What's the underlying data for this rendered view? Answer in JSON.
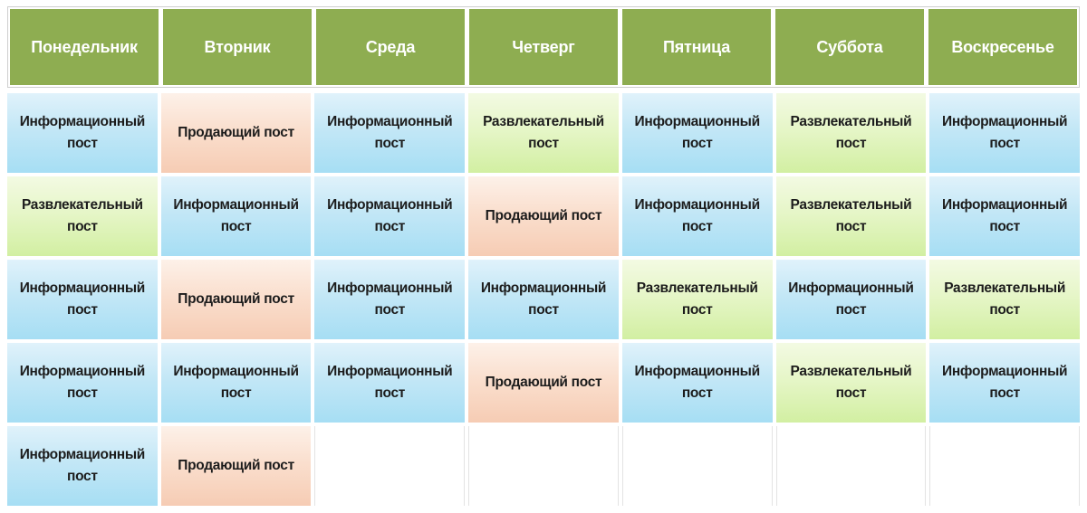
{
  "calendar": {
    "days": [
      "Понедельник",
      "Вторник",
      "Среда",
      "Четверг",
      "Пятница",
      "Суббота",
      "Воскресенье"
    ],
    "post_type_labels": {
      "info": "Информационный пост",
      "sell": "Продающий пост",
      "fun": "Развлекательный пост"
    },
    "rows": [
      [
        {
          "type": "info",
          "label": "Информационный пост"
        },
        {
          "type": "sell",
          "label": "Продающий пост"
        },
        {
          "type": "info",
          "label": "Информационный пост"
        },
        {
          "type": "fun",
          "label": "Развлекательный пост"
        },
        {
          "type": "info",
          "label": "Информационный пост"
        },
        {
          "type": "fun",
          "label": "Развлекательный пост"
        },
        {
          "type": "info",
          "label": "Информационный пост"
        }
      ],
      [
        {
          "type": "fun",
          "label": "Развлекательный пост"
        },
        {
          "type": "info",
          "label": "Информационный пост"
        },
        {
          "type": "info",
          "label": "Информационный пост"
        },
        {
          "type": "sell",
          "label": "Продающий пост"
        },
        {
          "type": "info",
          "label": "Информационный пост"
        },
        {
          "type": "fun",
          "label": "Развлекательный пост"
        },
        {
          "type": "info",
          "label": "Информационный пост"
        }
      ],
      [
        {
          "type": "info",
          "label": "Информационный пост"
        },
        {
          "type": "sell",
          "label": "Продающий пост"
        },
        {
          "type": "info",
          "label": "Информационный пост"
        },
        {
          "type": "info",
          "label": "Информационный пост"
        },
        {
          "type": "fun",
          "label": "Развлекательный пост"
        },
        {
          "type": "info",
          "label": "Информационный пост"
        },
        {
          "type": "fun",
          "label": "Развлекательный пост"
        }
      ],
      [
        {
          "type": "info",
          "label": "Информационный пост"
        },
        {
          "type": "info",
          "label": "Информационный пост"
        },
        {
          "type": "info",
          "label": "Информационный пост"
        },
        {
          "type": "sell",
          "label": "Продающий пост"
        },
        {
          "type": "info",
          "label": "Информационный пост"
        },
        {
          "type": "fun",
          "label": "Развлекательный пост"
        },
        {
          "type": "info",
          "label": "Информационный пост"
        }
      ],
      [
        {
          "type": "info",
          "label": "Информационный пост"
        },
        {
          "type": "sell",
          "label": "Продающий пост"
        },
        {
          "type": "empty",
          "label": ""
        },
        {
          "type": "empty",
          "label": ""
        },
        {
          "type": "empty",
          "label": ""
        },
        {
          "type": "empty",
          "label": ""
        },
        {
          "type": "empty",
          "label": ""
        }
      ]
    ]
  },
  "colors": {
    "header_bg": "#8ead51",
    "header_text": "#ffffff",
    "cell_text": "#1c1c1c",
    "info_cell_top": "#e0f2fb",
    "info_cell_bottom": "#a6def4",
    "fun_cell_top": "#f3fae3",
    "fun_cell_bottom": "#d2efa2",
    "sell_cell_top": "#fdf1e9",
    "sell_cell_bottom": "#f6ccb4",
    "grid_border": "#cfcfcf"
  }
}
